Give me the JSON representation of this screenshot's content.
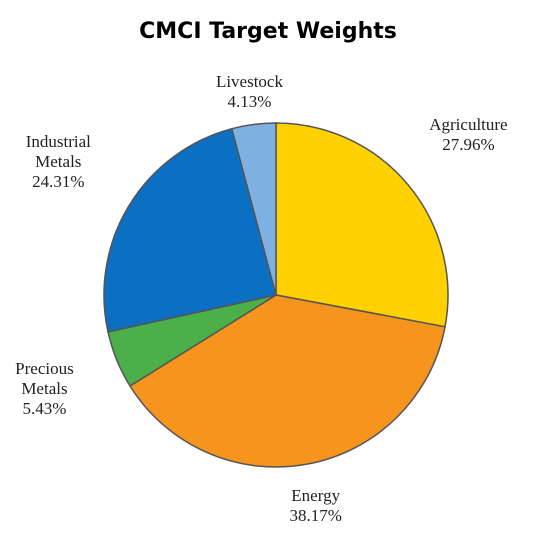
{
  "chart_data": {
    "type": "pie",
    "title": "CMCI Target Weights",
    "categories": [
      "Agriculture",
      "Energy",
      "Precious Metals",
      "Industrial Metals",
      "Livestock"
    ],
    "values": [
      27.96,
      38.17,
      5.43,
      24.31,
      4.13
    ],
    "value_labels": [
      "27.96%",
      "38.17%",
      "5.43%",
      "24.31%",
      "4.13%"
    ],
    "colors": [
      "#ffd100",
      "#f7941d",
      "#4cb04a",
      "#0b6fc3",
      "#7eb0e1"
    ]
  }
}
